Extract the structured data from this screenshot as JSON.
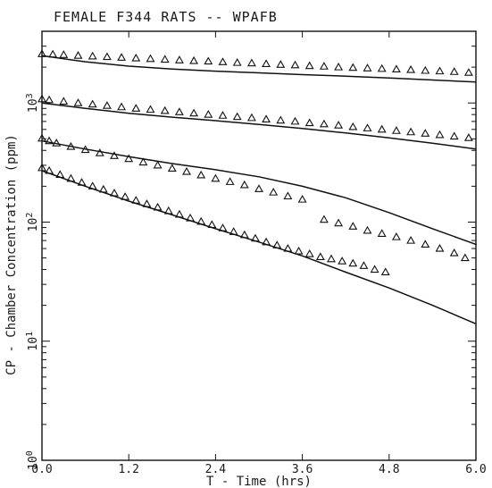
{
  "chart_data": {
    "type": "scatter",
    "title": "FEMALE F344 RATS -- WPAFB",
    "xlabel": "T - Time (hrs)",
    "ylabel": "CP - Chamber Concentration (ppm)",
    "x_scale": "linear",
    "y_scale": "log",
    "xlim": [
      0.0,
      6.0
    ],
    "ylim": [
      1,
      4000
    ],
    "x_ticks": [
      "0.0",
      "1.2",
      "2.4",
      "3.6",
      "4.8",
      "6.0"
    ],
    "y_ticks": [
      {
        "value": 1,
        "label": "10",
        "exp": "0"
      },
      {
        "value": 10,
        "label": "10",
        "exp": "1"
      },
      {
        "value": 100,
        "label": "10",
        "exp": "2"
      },
      {
        "value": 1000,
        "label": "10",
        "exp": "3"
      }
    ],
    "grid": false,
    "series": [
      {
        "observed": [
          [
            0.0,
            2580
          ],
          [
            0.15,
            2560
          ],
          [
            0.3,
            2540
          ],
          [
            0.5,
            2500
          ],
          [
            0.7,
            2470
          ],
          [
            0.9,
            2440
          ],
          [
            1.1,
            2410
          ],
          [
            1.3,
            2380
          ],
          [
            1.5,
            2350
          ],
          [
            1.7,
            2320
          ],
          [
            1.9,
            2290
          ],
          [
            2.1,
            2260
          ],
          [
            2.3,
            2240
          ],
          [
            2.5,
            2210
          ],
          [
            2.7,
            2180
          ],
          [
            2.9,
            2160
          ],
          [
            3.1,
            2130
          ],
          [
            3.3,
            2100
          ],
          [
            3.5,
            2080
          ],
          [
            3.7,
            2050
          ],
          [
            3.9,
            2030
          ],
          [
            4.1,
            2000
          ],
          [
            4.3,
            1980
          ],
          [
            4.5,
            1960
          ],
          [
            4.7,
            1940
          ],
          [
            4.9,
            1920
          ],
          [
            5.1,
            1900
          ],
          [
            5.3,
            1870
          ],
          [
            5.5,
            1850
          ],
          [
            5.7,
            1830
          ],
          [
            5.9,
            1800
          ]
        ],
        "predicted": [
          [
            0.0,
            2500
          ],
          [
            0.3,
            2350
          ],
          [
            0.6,
            2220
          ],
          [
            1.2,
            2040
          ],
          [
            1.8,
            1930
          ],
          [
            2.4,
            1850
          ],
          [
            3.0,
            1790
          ],
          [
            3.6,
            1730
          ],
          [
            4.2,
            1680
          ],
          [
            4.8,
            1620
          ],
          [
            5.4,
            1560
          ],
          [
            6.0,
            1500
          ]
        ]
      },
      {
        "observed": [
          [
            0.0,
            1080
          ],
          [
            0.1,
            1060
          ],
          [
            0.3,
            1030
          ],
          [
            0.5,
            1000
          ],
          [
            0.7,
            975
          ],
          [
            0.9,
            950
          ],
          [
            1.1,
            925
          ],
          [
            1.3,
            900
          ],
          [
            1.5,
            880
          ],
          [
            1.7,
            860
          ],
          [
            1.9,
            840
          ],
          [
            2.1,
            820
          ],
          [
            2.3,
            800
          ],
          [
            2.5,
            785
          ],
          [
            2.7,
            765
          ],
          [
            2.9,
            750
          ],
          [
            3.1,
            730
          ],
          [
            3.3,
            715
          ],
          [
            3.5,
            700
          ],
          [
            3.7,
            680
          ],
          [
            3.9,
            665
          ],
          [
            4.1,
            650
          ],
          [
            4.3,
            630
          ],
          [
            4.5,
            615
          ],
          [
            4.7,
            600
          ],
          [
            4.9,
            585
          ],
          [
            5.1,
            570
          ],
          [
            5.3,
            555
          ],
          [
            5.5,
            540
          ],
          [
            5.7,
            525
          ],
          [
            5.9,
            510
          ]
        ],
        "predicted": [
          [
            0.0,
            1000
          ],
          [
            0.6,
            900
          ],
          [
            1.2,
            820
          ],
          [
            1.8,
            760
          ],
          [
            2.4,
            710
          ],
          [
            3.0,
            660
          ],
          [
            3.6,
            610
          ],
          [
            4.2,
            560
          ],
          [
            4.8,
            510
          ],
          [
            5.4,
            460
          ],
          [
            6.0,
            410
          ]
        ]
      },
      {
        "observed": [
          [
            0.0,
            505
          ],
          [
            0.1,
            480
          ],
          [
            0.2,
            460
          ],
          [
            0.4,
            430
          ],
          [
            0.6,
            405
          ],
          [
            0.8,
            380
          ],
          [
            1.0,
            360
          ],
          [
            1.2,
            340
          ],
          [
            1.4,
            318
          ],
          [
            1.6,
            300
          ],
          [
            1.8,
            282
          ],
          [
            2.0,
            265
          ],
          [
            2.2,
            248
          ],
          [
            2.4,
            232
          ],
          [
            2.6,
            218
          ],
          [
            2.8,
            205
          ],
          [
            3.0,
            190
          ],
          [
            3.2,
            178
          ],
          [
            3.4,
            165
          ],
          [
            3.6,
            155
          ],
          [
            3.9,
            105
          ],
          [
            4.1,
            98
          ],
          [
            4.3,
            92
          ],
          [
            4.5,
            85
          ],
          [
            4.7,
            80
          ],
          [
            4.9,
            75
          ],
          [
            5.1,
            70
          ],
          [
            5.3,
            65
          ],
          [
            5.5,
            60
          ],
          [
            5.7,
            55
          ],
          [
            5.85,
            50
          ]
        ],
        "predicted": [
          [
            0.0,
            480
          ],
          [
            0.6,
            410
          ],
          [
            1.2,
            355
          ],
          [
            1.8,
            310
          ],
          [
            2.4,
            275
          ],
          [
            3.0,
            240
          ],
          [
            3.6,
            200
          ],
          [
            4.2,
            160
          ],
          [
            4.8,
            120
          ],
          [
            5.4,
            88
          ],
          [
            6.0,
            65
          ]
        ]
      },
      {
        "observed": [
          [
            0.0,
            285
          ],
          [
            0.1,
            270
          ],
          [
            0.25,
            250
          ],
          [
            0.4,
            232
          ],
          [
            0.55,
            215
          ],
          [
            0.7,
            200
          ],
          [
            0.85,
            188
          ],
          [
            1.0,
            175
          ],
          [
            1.15,
            163
          ],
          [
            1.3,
            152
          ],
          [
            1.45,
            142
          ],
          [
            1.6,
            133
          ],
          [
            1.75,
            124
          ],
          [
            1.9,
            116
          ],
          [
            2.05,
            108
          ],
          [
            2.2,
            101
          ],
          [
            2.35,
            95
          ],
          [
            2.5,
            89
          ],
          [
            2.65,
            83
          ],
          [
            2.8,
            78
          ],
          [
            2.95,
            73
          ],
          [
            3.1,
            68
          ],
          [
            3.25,
            64
          ],
          [
            3.4,
            60
          ],
          [
            3.55,
            57
          ],
          [
            3.7,
            54
          ],
          [
            3.85,
            51
          ],
          [
            4.0,
            49
          ],
          [
            4.15,
            47
          ],
          [
            4.3,
            45
          ],
          [
            4.45,
            43
          ],
          [
            4.6,
            40
          ],
          [
            4.75,
            38
          ]
        ],
        "predicted": [
          [
            0.0,
            270
          ],
          [
            0.6,
            200
          ],
          [
            1.2,
            150
          ],
          [
            1.8,
            115
          ],
          [
            2.4,
            88
          ],
          [
            3.0,
            68
          ],
          [
            3.6,
            52
          ],
          [
            4.2,
            38
          ],
          [
            4.8,
            28
          ],
          [
            5.4,
            20
          ],
          [
            6.0,
            14
          ]
        ]
      }
    ]
  }
}
